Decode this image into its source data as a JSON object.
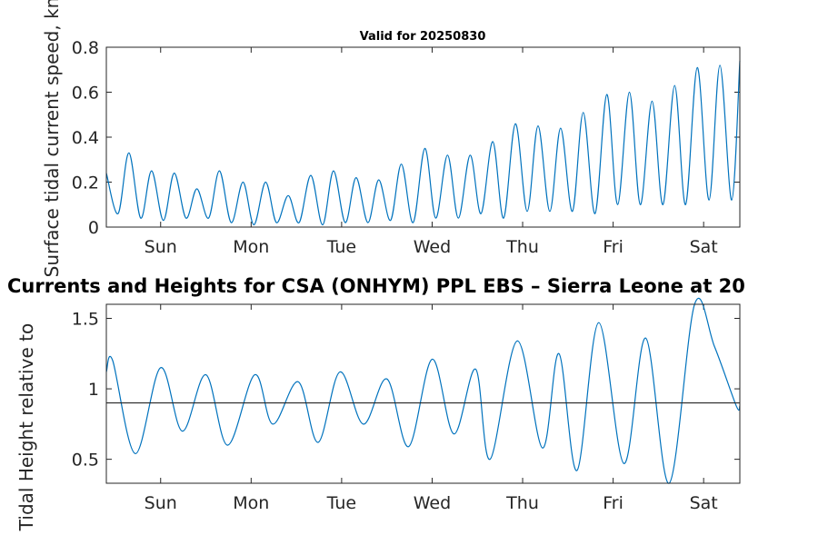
{
  "chart_data": [
    {
      "type": "line",
      "title": "Valid for 20250830",
      "ylabel": "Surface tidal current speed, kn",
      "xticks": [
        "Sun",
        "Mon",
        "Tue",
        "Wed",
        "Thu",
        "Fri",
        "Sat"
      ],
      "yticks": [
        "0",
        "0.2",
        "0.4",
        "0.6",
        "0.8"
      ],
      "ylim": [
        0,
        0.8
      ],
      "xlim_days": [
        0,
        7
      ],
      "series": [
        {
          "color": "#0072bd",
          "x_days": [
            0.0,
            0.13,
            0.25,
            0.38,
            0.5,
            0.63,
            0.75,
            0.88,
            1.0,
            1.13,
            1.25,
            1.38,
            1.51,
            1.63,
            1.76,
            1.88,
            2.01,
            2.13,
            2.26,
            2.39,
            2.51,
            2.64,
            2.76,
            2.89,
            3.01,
            3.14,
            3.26,
            3.39,
            3.52,
            3.64,
            3.77,
            3.89,
            4.02,
            4.14,
            4.27,
            4.39,
            4.52,
            4.65,
            4.77,
            4.9,
            5.02,
            5.15,
            5.27,
            5.4,
            5.53,
            5.65,
            5.78,
            5.9,
            6.03,
            6.15,
            6.28,
            6.4,
            6.53,
            6.66,
            6.78,
            6.91,
            7.0
          ],
          "values": [
            0.24,
            0.06,
            0.33,
            0.04,
            0.25,
            0.03,
            0.24,
            0.04,
            0.17,
            0.04,
            0.25,
            0.02,
            0.2,
            0.01,
            0.2,
            0.02,
            0.14,
            0.02,
            0.23,
            0.01,
            0.25,
            0.02,
            0.22,
            0.02,
            0.21,
            0.03,
            0.28,
            0.02,
            0.35,
            0.04,
            0.32,
            0.04,
            0.32,
            0.06,
            0.38,
            0.04,
            0.46,
            0.07,
            0.45,
            0.07,
            0.44,
            0.07,
            0.51,
            0.06,
            0.59,
            0.1,
            0.6,
            0.1,
            0.56,
            0.1,
            0.63,
            0.1,
            0.71,
            0.12,
            0.72,
            0.12,
            0.74
          ]
        }
      ]
    },
    {
      "type": "line",
      "title": "Currents and Heights for CSA (ONHYM) PPL EBS  – Sierra Leone at 20",
      "ylabel": "Tidal Height relative to",
      "xticks": [
        "Sun",
        "Mon",
        "Tue",
        "Wed",
        "Thu",
        "Fri",
        "Sat"
      ],
      "yticks": [
        "0.5",
        "1",
        "1.5"
      ],
      "ylim": [
        0.33,
        1.6
      ],
      "xlim_days": [
        0,
        7
      ],
      "reference_line": 0.9,
      "series": [
        {
          "color": "#0072bd",
          "x_days": [
            0.0,
            0.07,
            0.32,
            0.6,
            0.84,
            1.1,
            1.34,
            1.64,
            1.84,
            2.12,
            2.34,
            2.58,
            2.84,
            3.1,
            3.34,
            3.6,
            3.84,
            4.08,
            4.24,
            4.54,
            4.82,
            5.0,
            5.2,
            5.44,
            5.72,
            5.96,
            6.22,
            6.5,
            6.72,
            6.96,
            7.0
          ],
          "values": [
            1.12,
            1.2,
            0.54,
            1.15,
            0.7,
            1.1,
            0.6,
            1.1,
            0.75,
            1.05,
            0.62,
            1.12,
            0.75,
            1.07,
            0.59,
            1.21,
            0.68,
            1.14,
            0.5,
            1.34,
            0.58,
            1.25,
            0.42,
            1.47,
            0.47,
            1.36,
            0.33,
            1.6,
            1.3,
            0.88,
            0.88
          ]
        }
      ]
    }
  ]
}
